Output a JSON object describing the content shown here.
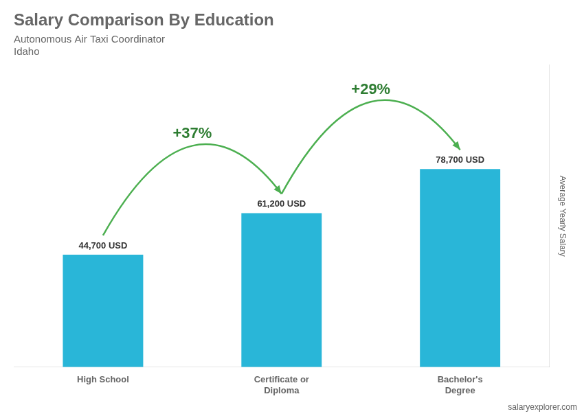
{
  "chart_data": {
    "type": "bar",
    "title": "Salary Comparison By Education",
    "subtitle": [
      "Autonomous Air Taxi Coordinator",
      "Idaho"
    ],
    "categories": [
      "High School",
      "Certificate or\nDiploma",
      "Bachelor's\nDegree"
    ],
    "values": [
      44700,
      61200,
      78700
    ],
    "value_labels": [
      "44,700 USD",
      "61,200 USD",
      "78,700 USD"
    ],
    "data_labels": true,
    "color": "#29b6d8",
    "ylabel": "Average Yearly Salary",
    "ylim": [
      0,
      120000
    ],
    "tick_labels": "x",
    "grid": false,
    "legend": false,
    "annotations": [
      "+37%",
      "+29%"
    ],
    "source": "salaryexplorer.com"
  }
}
